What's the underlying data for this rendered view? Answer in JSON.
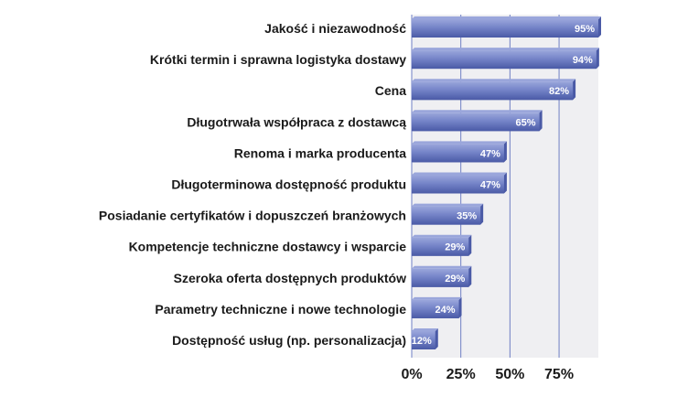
{
  "chart_data": {
    "type": "bar",
    "orientation": "horizontal",
    "title": "",
    "xlabel": "",
    "ylabel": "",
    "categories": [
      "Jakość i niezawodność",
      "Krótki termin i sprawna logistyka dostawy",
      "Cena",
      "Długotrwała współpraca z dostawcą",
      "Renoma i marka producenta",
      "Długoterminowa dostępność produktu",
      "Posiadanie certyfikatów i dopuszczeń branżowych",
      "Kompetencje techniczne dostawcy i wsparcie",
      "Szeroka oferta dostępnych produktów",
      "Parametry techniczne i nowe technologie",
      "Dostępność usług (np. personalizacja)"
    ],
    "values": [
      95,
      94,
      82,
      65,
      47,
      47,
      35,
      29,
      29,
      24,
      12
    ],
    "value_labels": [
      "95%",
      "94%",
      "82%",
      "65%",
      "47%",
      "47%",
      "35%",
      "29%",
      "29%",
      "24%",
      "12%"
    ],
    "xlim": [
      0,
      95
    ],
    "x_ticks": [
      0,
      25,
      50,
      75
    ],
    "x_tick_labels": [
      "0%",
      "25%",
      "50%",
      "75%"
    ],
    "grid": true,
    "legend": "none",
    "colors": {
      "bar": "#6f7fc4",
      "bar_dark": "#4a5aa6",
      "bar_light": "#9aa6db",
      "plot_bg": "#efeff2",
      "grid": "#6f7fc4",
      "text": "#1a1a1a",
      "value_text": "#ffffff"
    }
  }
}
